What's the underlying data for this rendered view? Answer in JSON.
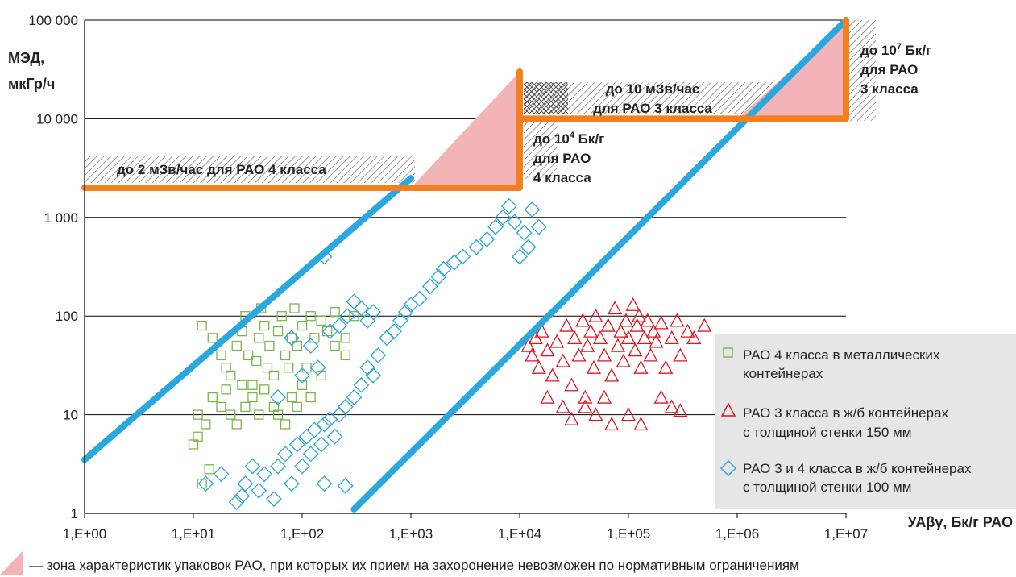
{
  "chart_data": {
    "type": "scatter",
    "x_scale": "log",
    "y_scale": "log",
    "xlim": [
      1,
      10000000
    ],
    "ylim": [
      1,
      100000
    ],
    "grid": "horizontal",
    "ylabel_line1": "МЭД,",
    "ylabel_line2": "мкГр/ч",
    "xlabel": "УАβγ, Бк/г РАО",
    "x_ticks": [
      {
        "v": 1,
        "label": "1,E+00"
      },
      {
        "v": 10,
        "label": "1,E+01"
      },
      {
        "v": 100,
        "label": "1,E+02"
      },
      {
        "v": 1000,
        "label": "1,E+03"
      },
      {
        "v": 10000,
        "label": "1,E+04"
      },
      {
        "v": 100000,
        "label": "1,E+05"
      },
      {
        "v": 1000000,
        "label": "1,E+06"
      },
      {
        "v": 10000000,
        "label": "1,E+07"
      }
    ],
    "y_ticks": [
      {
        "v": 1,
        "label": "1"
      },
      {
        "v": 10,
        "label": "10"
      },
      {
        "v": 100,
        "label": "100"
      },
      {
        "v": 1000,
        "label": "1 000"
      },
      {
        "v": 10000,
        "label": "10 000"
      },
      {
        "v": 100000,
        "label": "100 000"
      }
    ],
    "colors": {
      "green": "#7ab648",
      "red": "#e3141c",
      "blue": "#2aa7d9",
      "orange": "#f47f1e",
      "pink": "#f3b4b8",
      "limit_line": "#29a8e0"
    },
    "limit_lines": [
      {
        "points": [
          [
            1,
            3.5
          ],
          [
            1000,
            2500
          ]
        ]
      },
      {
        "points": [
          [
            300,
            1.1
          ],
          [
            10000000,
            100000
          ]
        ]
      }
    ],
    "orange_boundary": [
      [
        1,
        2000
      ],
      [
        10000,
        2000
      ],
      [
        10000,
        30000
      ],
      [
        10000,
        10000
      ],
      [
        10000000,
        10000
      ],
      [
        10000000,
        100000
      ]
    ],
    "pink_zones": [
      {
        "points": [
          [
            1000,
            2000
          ],
          [
            10000,
            2000
          ],
          [
            10000,
            30000
          ]
        ]
      },
      {
        "points": [
          [
            1000000,
            10000
          ],
          [
            10000000,
            10000
          ],
          [
            10000000,
            100000
          ]
        ]
      }
    ],
    "annotations": {
      "zone1": "до 2 мЗв/час для РАО 4 класса",
      "zone2_line1": "до 10 мЗв/час",
      "zone2_line2": "для РАО 3 класса",
      "mid_line1": "до 10",
      "mid_sup": "4",
      "mid_unit": " Бк/г",
      "mid_line2": "для РАО",
      "mid_line3": "4 класса",
      "right_line1": "до 10",
      "right_sup": "7",
      "right_unit": " Бк/г",
      "right_line2": "для РАО",
      "right_line3": "3 класса"
    },
    "series": [
      {
        "name": "РАО 4 класса в металлических контейнерах",
        "marker": "square",
        "color": "#7ab648",
        "points": [
          [
            12,
            80
          ],
          [
            15,
            60
          ],
          [
            18,
            40
          ],
          [
            20,
            30
          ],
          [
            22,
            25
          ],
          [
            25,
            50
          ],
          [
            28,
            70
          ],
          [
            30,
            100
          ],
          [
            32,
            40
          ],
          [
            35,
            20
          ],
          [
            38,
            35
          ],
          [
            40,
            60
          ],
          [
            42,
            120
          ],
          [
            45,
            80
          ],
          [
            48,
            30
          ],
          [
            50,
            50
          ],
          [
            55,
            25
          ],
          [
            60,
            70
          ],
          [
            65,
            100
          ],
          [
            70,
            40
          ],
          [
            75,
            30
          ],
          [
            80,
            60
          ],
          [
            85,
            120
          ],
          [
            90,
            50
          ],
          [
            100,
            80
          ],
          [
            110,
            30
          ],
          [
            120,
            100
          ],
          [
            130,
            60
          ],
          [
            150,
            90
          ],
          [
            170,
            70
          ],
          [
            200,
            110
          ],
          [
            250,
            60
          ],
          [
            300,
            100
          ],
          [
            11,
            10
          ],
          [
            13,
            8
          ],
          [
            10,
            5
          ],
          [
            11,
            6
          ],
          [
            12,
            2
          ],
          [
            14,
            2.8
          ],
          [
            15,
            15
          ],
          [
            18,
            12
          ],
          [
            20,
            18
          ],
          [
            22,
            10
          ],
          [
            25,
            8
          ],
          [
            28,
            20
          ],
          [
            30,
            12
          ],
          [
            35,
            15
          ],
          [
            40,
            10
          ],
          [
            45,
            18
          ],
          [
            55,
            12
          ],
          [
            60,
            10
          ],
          [
            70,
            8
          ],
          [
            80,
            15
          ],
          [
            90,
            12
          ],
          [
            100,
            20
          ],
          [
            120,
            15
          ],
          [
            150,
            25
          ],
          [
            200,
            50
          ],
          [
            250,
            40
          ]
        ]
      },
      {
        "name": "РАО 3 класса в ж/б контейнерах с толщиной стенки 150 мм",
        "marker": "triangle",
        "color": "#e3141c",
        "points": [
          [
            12000,
            50
          ],
          [
            13000,
            40
          ],
          [
            14000,
            60
          ],
          [
            15000,
            30
          ],
          [
            16000,
            70
          ],
          [
            18000,
            45
          ],
          [
            20000,
            25
          ],
          [
            22000,
            55
          ],
          [
            25000,
            35
          ],
          [
            27000,
            80
          ],
          [
            30000,
            20
          ],
          [
            32000,
            60
          ],
          [
            35000,
            40
          ],
          [
            38000,
            90
          ],
          [
            40000,
            15
          ],
          [
            42000,
            50
          ],
          [
            45000,
            70
          ],
          [
            48000,
            30
          ],
          [
            50000,
            100
          ],
          [
            55000,
            60
          ],
          [
            60000,
            40
          ],
          [
            65000,
            80
          ],
          [
            70000,
            25
          ],
          [
            75000,
            120
          ],
          [
            80000,
            50
          ],
          [
            85000,
            70
          ],
          [
            90000,
            35
          ],
          [
            95000,
            90
          ],
          [
            100000,
            60
          ],
          [
            110000,
            130
          ],
          [
            115000,
            45
          ],
          [
            120000,
            80
          ],
          [
            125000,
            100
          ],
          [
            130000,
            30
          ],
          [
            140000,
            60
          ],
          [
            150000,
            90
          ],
          [
            160000,
            40
          ],
          [
            170000,
            70
          ],
          [
            180000,
            55
          ],
          [
            200000,
            85
          ],
          [
            220000,
            30
          ],
          [
            250000,
            60
          ],
          [
            280000,
            90
          ],
          [
            300000,
            40
          ],
          [
            350000,
            70
          ],
          [
            400000,
            60
          ],
          [
            500000,
            80
          ],
          [
            30000,
            9
          ],
          [
            50000,
            10
          ],
          [
            70000,
            8
          ],
          [
            100000,
            10
          ],
          [
            130000,
            8
          ],
          [
            200000,
            15
          ],
          [
            250000,
            12
          ],
          [
            300000,
            11
          ],
          [
            18000,
            15
          ],
          [
            25000,
            12
          ],
          [
            40000,
            12
          ],
          [
            60000,
            15
          ]
        ]
      },
      {
        "name": "РАО 3 и 4 класса в ж/б контейнерах с толщиной стенки 100 мм",
        "marker": "diamond",
        "color": "#2aa7d9",
        "points": [
          [
            13,
            2
          ],
          [
            18,
            2.5
          ],
          [
            25,
            1.3
          ],
          [
            28,
            1.5
          ],
          [
            30,
            2
          ],
          [
            35,
            3
          ],
          [
            40,
            1.7
          ],
          [
            45,
            2.5
          ],
          [
            55,
            1.4
          ],
          [
            60,
            3
          ],
          [
            70,
            4
          ],
          [
            80,
            2
          ],
          [
            90,
            5
          ],
          [
            100,
            3
          ],
          [
            110,
            6
          ],
          [
            120,
            4
          ],
          [
            130,
            7
          ],
          [
            150,
            5
          ],
          [
            160,
            8
          ],
          [
            180,
            9
          ],
          [
            200,
            6
          ],
          [
            220,
            10
          ],
          [
            250,
            12
          ],
          [
            160,
            2
          ],
          [
            250,
            1.9
          ],
          [
            300,
            15
          ],
          [
            350,
            20
          ],
          [
            400,
            30
          ],
          [
            450,
            25
          ],
          [
            500,
            40
          ],
          [
            600,
            60
          ],
          [
            700,
            70
          ],
          [
            800,
            90
          ],
          [
            900,
            110
          ],
          [
            1000,
            130
          ],
          [
            1200,
            150
          ],
          [
            1500,
            200
          ],
          [
            1800,
            250
          ],
          [
            2000,
            300
          ],
          [
            2500,
            350
          ],
          [
            3000,
            400
          ],
          [
            4000,
            500
          ],
          [
            5000,
            600
          ],
          [
            6000,
            800
          ],
          [
            7000,
            1000
          ],
          [
            8000,
            1300
          ],
          [
            9000,
            900
          ],
          [
            10000,
            400
          ],
          [
            11000,
            700
          ],
          [
            12000,
            500
          ],
          [
            13000,
            1200
          ],
          [
            15000,
            800
          ],
          [
            160,
            400
          ],
          [
            60,
            15
          ],
          [
            100,
            25
          ],
          [
            140,
            30
          ],
          [
            180,
            70
          ],
          [
            220,
            80
          ],
          [
            260,
            100
          ],
          [
            300,
            140
          ],
          [
            350,
            120
          ],
          [
            400,
            90
          ],
          [
            450,
            110
          ],
          [
            80,
            60
          ],
          [
            120,
            50
          ]
        ]
      }
    ],
    "legend_position": "right",
    "footer_note": "— зона характеристик упаковок РАО, при которых их прием на захоронение невозможен по нормативным ограничениям"
  }
}
